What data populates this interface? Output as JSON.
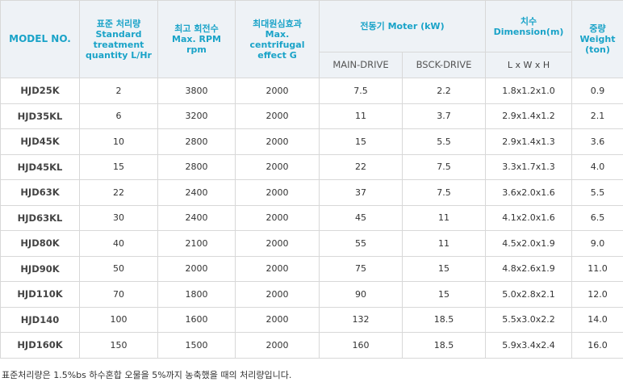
{
  "header": {
    "model": "MODEL NO.",
    "capacity": [
      "표준 처리량",
      "Standard",
      "treatment",
      "quantity L/Hr"
    ],
    "rpm": [
      "최고 회전수",
      "Max. RPM",
      "rpm"
    ],
    "centrifugal": [
      "최대원심효과",
      "Max.",
      "centrifugal",
      "effect G"
    ],
    "motor": "전동기 Moter (kW)",
    "main_drive": "MAIN-DRIVE",
    "back_drive": "BSCK-DRIVE",
    "dimension": [
      "치수",
      "Dimension(m)"
    ],
    "dimension_sub": "L x W x H",
    "weight": [
      "중량",
      "Weight",
      "(ton)"
    ]
  },
  "rows": [
    [
      "HJD25K",
      "2",
      "3800",
      "2000",
      "7.5",
      "2.2",
      "1.8x1.2x1.0",
      "0.9"
    ],
    [
      "HJD35KL",
      "6",
      "3200",
      "2000",
      "11",
      "3.7",
      "2.9x1.4x1.2",
      "2.1"
    ],
    [
      "HJD45K",
      "10",
      "2800",
      "2000",
      "15",
      "5.5",
      "2.9x1.4x1.3",
      "3.6"
    ],
    [
      "HJD45KL",
      "15",
      "2800",
      "2000",
      "22",
      "7.5",
      "3.3x1.7x1.3",
      "4.0"
    ],
    [
      "HJD63K",
      "22",
      "2400",
      "2000",
      "37",
      "7.5",
      "3.6x2.0x1.6",
      "5.5"
    ],
    [
      "HJD63KL",
      "30",
      "2400",
      "2000",
      "45",
      "11",
      "4.1x2.0x1.6",
      "6.5"
    ],
    [
      "HJD80K",
      "40",
      "2100",
      "2000",
      "55",
      "11",
      "4.5x2.0x1.9",
      "9.0"
    ],
    [
      "HJD90K",
      "50",
      "2000",
      "2000",
      "75",
      "15",
      "4.8x2.6x1.9",
      "11.0"
    ],
    [
      "HJD110K",
      "70",
      "1800",
      "2000",
      "90",
      "15",
      "5.0x2.8x2.1",
      "12.0"
    ],
    [
      "HJD140",
      "100",
      "1600",
      "2000",
      "132",
      "18.5",
      "5.5x3.0x2.2",
      "14.0"
    ],
    [
      "HJD160K",
      "150",
      "1500",
      "2000",
      "160",
      "18.5",
      "5.9x3.4x2.4",
      "16.0"
    ]
  ],
  "note": "표준처리량은 1.5%bs 하수혼합 오물을 5%까지 농축했을 때의 처리량입니다."
}
